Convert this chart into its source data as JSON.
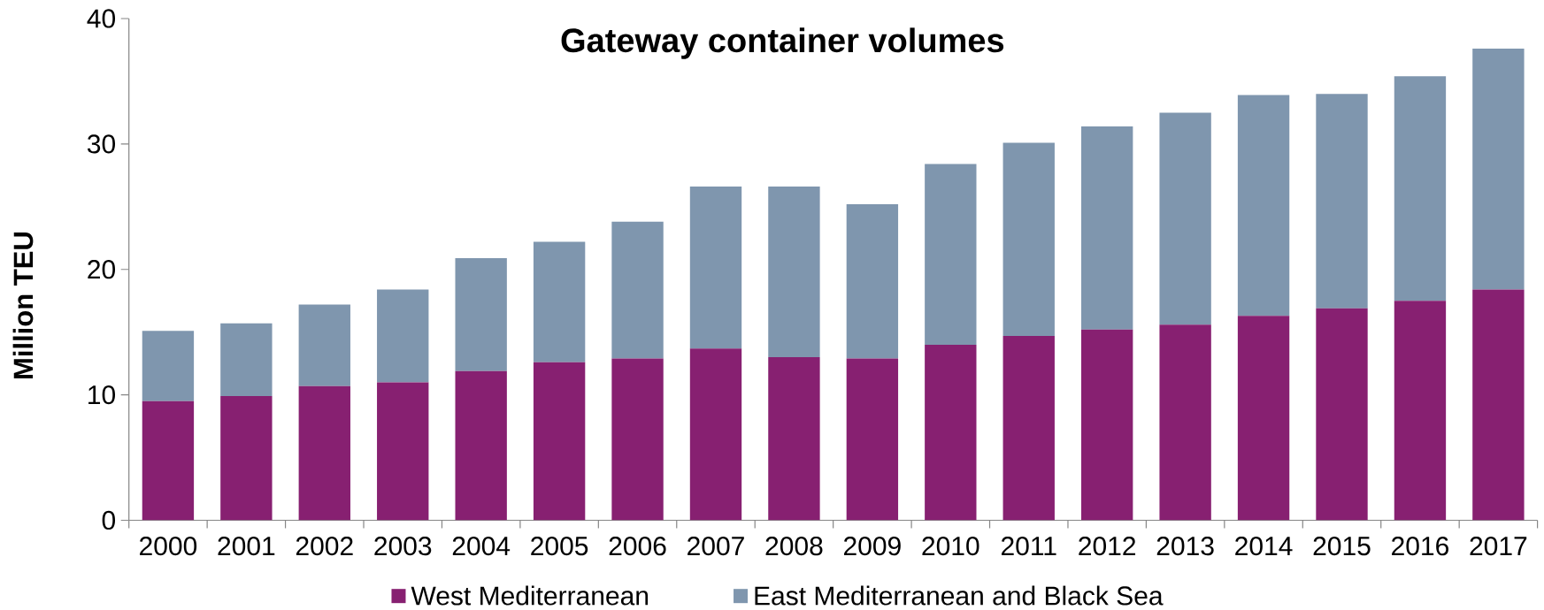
{
  "chart_data": {
    "type": "bar",
    "title": "Gateway container volumes",
    "ylabel": "Million TEU",
    "categories": [
      "2000",
      "2001",
      "2002",
      "2003",
      "2004",
      "2005",
      "2006",
      "2007",
      "2008",
      "2009",
      "2010",
      "2011",
      "2012",
      "2013",
      "2014",
      "2015",
      "2016",
      "2017"
    ],
    "stacked": true,
    "series": [
      {
        "name": "West Mediterranean",
        "color": "#872071",
        "values": [
          9.5,
          9.9,
          10.7,
          11.0,
          11.9,
          12.6,
          12.9,
          13.7,
          13.0,
          12.9,
          14.0,
          14.7,
          15.2,
          15.6,
          16.3,
          16.9,
          17.5,
          18.4
        ]
      },
      {
        "name": "East Mediterranean and Black Sea",
        "color": "#7f96ae",
        "values": [
          5.6,
          5.8,
          6.5,
          7.4,
          9.0,
          9.6,
          10.9,
          12.9,
          13.6,
          12.3,
          14.4,
          15.4,
          16.2,
          16.9,
          17.6,
          17.1,
          17.9,
          19.2
        ]
      }
    ],
    "ylim": [
      0,
      40
    ],
    "yticks": [
      0,
      10,
      20,
      30,
      40
    ],
    "legend": "bottom"
  }
}
